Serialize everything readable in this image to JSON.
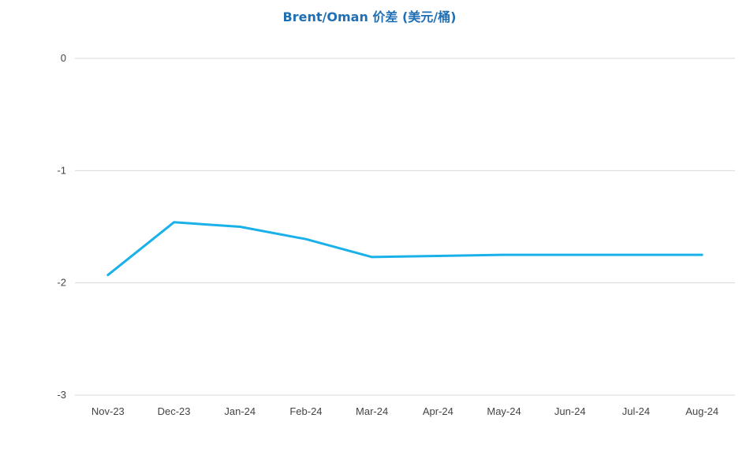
{
  "chart_data": {
    "type": "line",
    "title": "Brent/Oman 价差 (美元/桶)",
    "xlabel": "",
    "ylabel": "",
    "categories": [
      "Nov-23",
      "Dec-23",
      "Jan-24",
      "Feb-24",
      "Mar-24",
      "Apr-24",
      "May-24",
      "Jun-24",
      "Jul-24",
      "Aug-24"
    ],
    "series": [
      {
        "values": [
          -1.93,
          -1.46,
          -1.5,
          -1.61,
          -1.77,
          -1.76,
          -1.75,
          -1.75,
          -1.75,
          -1.75
        ],
        "color": "#1ab0e8"
      }
    ],
    "ylim": [
      -3,
      0
    ],
    "yticks": [
      0,
      -1,
      -2,
      -3
    ],
    "grid": true,
    "legend": "none"
  }
}
